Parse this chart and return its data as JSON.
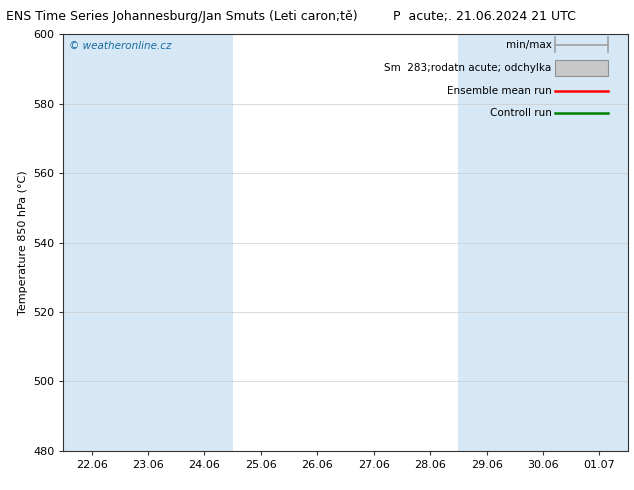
{
  "title_left": "ENS Time Series Johannesburg/Jan Smuts (Leti caron;tě)",
  "title_right": "P  acute;. 21.06.2024 21 UTC",
  "ylabel": "Temperature 850 hPa (°C)",
  "ylim": [
    480,
    600
  ],
  "yticks": [
    480,
    500,
    520,
    540,
    560,
    580,
    600
  ],
  "x_labels": [
    "22.06",
    "23.06",
    "24.06",
    "25.06",
    "26.06",
    "27.06",
    "28.06",
    "29.06",
    "30.06",
    "01.07"
  ],
  "x_positions": [
    0,
    1,
    2,
    3,
    4,
    5,
    6,
    7,
    8,
    9
  ],
  "xlim": [
    -0.5,
    9.5
  ],
  "band_color": "#d6e8f5",
  "bg_color": "#ffffff",
  "legend_items": [
    {
      "label": "min/max",
      "color": "#a0a0a0",
      "style": "minmax"
    },
    {
      "label": "Sm  283;rodatn acute; odchylka",
      "color": "#c8c8c8",
      "style": "box"
    },
    {
      "label": "Ensemble mean run",
      "color": "#ff0000",
      "style": "line"
    },
    {
      "label": "Controll run",
      "color": "#008000",
      "style": "line"
    }
  ],
  "watermark": "© weatheronline.cz",
  "grid_color": "#cccccc",
  "band_positions": [
    0,
    1,
    2,
    7,
    8,
    9
  ],
  "title_fontsize": 9,
  "axis_fontsize": 8,
  "tick_fontsize": 8,
  "legend_fontsize": 7.5
}
